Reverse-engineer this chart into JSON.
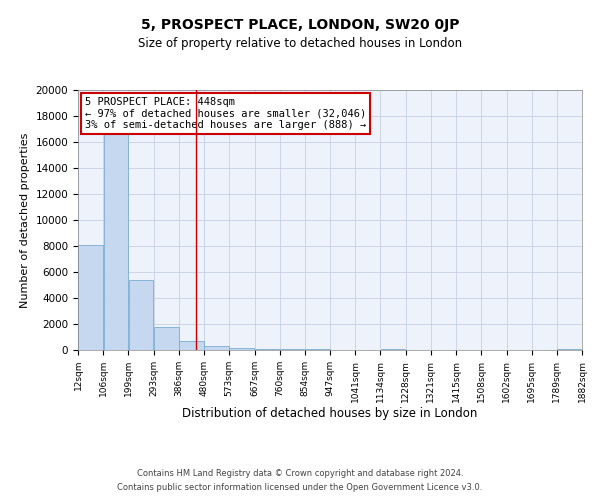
{
  "title": "5, PROSPECT PLACE, LONDON, SW20 0JP",
  "subtitle": "Size of property relative to detached houses in London",
  "xlabel": "Distribution of detached houses by size in London",
  "ylabel": "Number of detached properties",
  "bar_color": "#c5d8f0",
  "bar_edge_color": "#7aadd4",
  "background_color": "#eef2fb",
  "grid_color": "#c8d0e8",
  "vline_x": 448,
  "vline_color": "#cc0000",
  "annotation_lines": [
    "5 PROSPECT PLACE: 448sqm",
    "← 97% of detached houses are smaller (32,046)",
    "3% of semi-detached houses are larger (888) →"
  ],
  "bin_edges": [
    12,
    106,
    199,
    293,
    386,
    480,
    573,
    667,
    760,
    854,
    947,
    1041,
    1134,
    1228,
    1321,
    1415,
    1508,
    1602,
    1695,
    1789,
    1882
  ],
  "bin_heights": [
    8100,
    16600,
    5350,
    1800,
    700,
    300,
    150,
    50,
    100,
    50,
    0,
    0,
    50,
    0,
    0,
    0,
    0,
    0,
    0,
    100
  ],
  "tick_labels": [
    "12sqm",
    "106sqm",
    "199sqm",
    "293sqm",
    "386sqm",
    "480sqm",
    "573sqm",
    "667sqm",
    "760sqm",
    "854sqm",
    "947sqm",
    "1041sqm",
    "1134sqm",
    "1228sqm",
    "1321sqm",
    "1415sqm",
    "1508sqm",
    "1602sqm",
    "1695sqm",
    "1789sqm",
    "1882sqm"
  ],
  "footer_line1": "Contains HM Land Registry data © Crown copyright and database right 2024.",
  "footer_line2": "Contains public sector information licensed under the Open Government Licence v3.0.",
  "ylim": [
    0,
    20000
  ],
  "yticks": [
    0,
    2000,
    4000,
    6000,
    8000,
    10000,
    12000,
    14000,
    16000,
    18000,
    20000
  ]
}
